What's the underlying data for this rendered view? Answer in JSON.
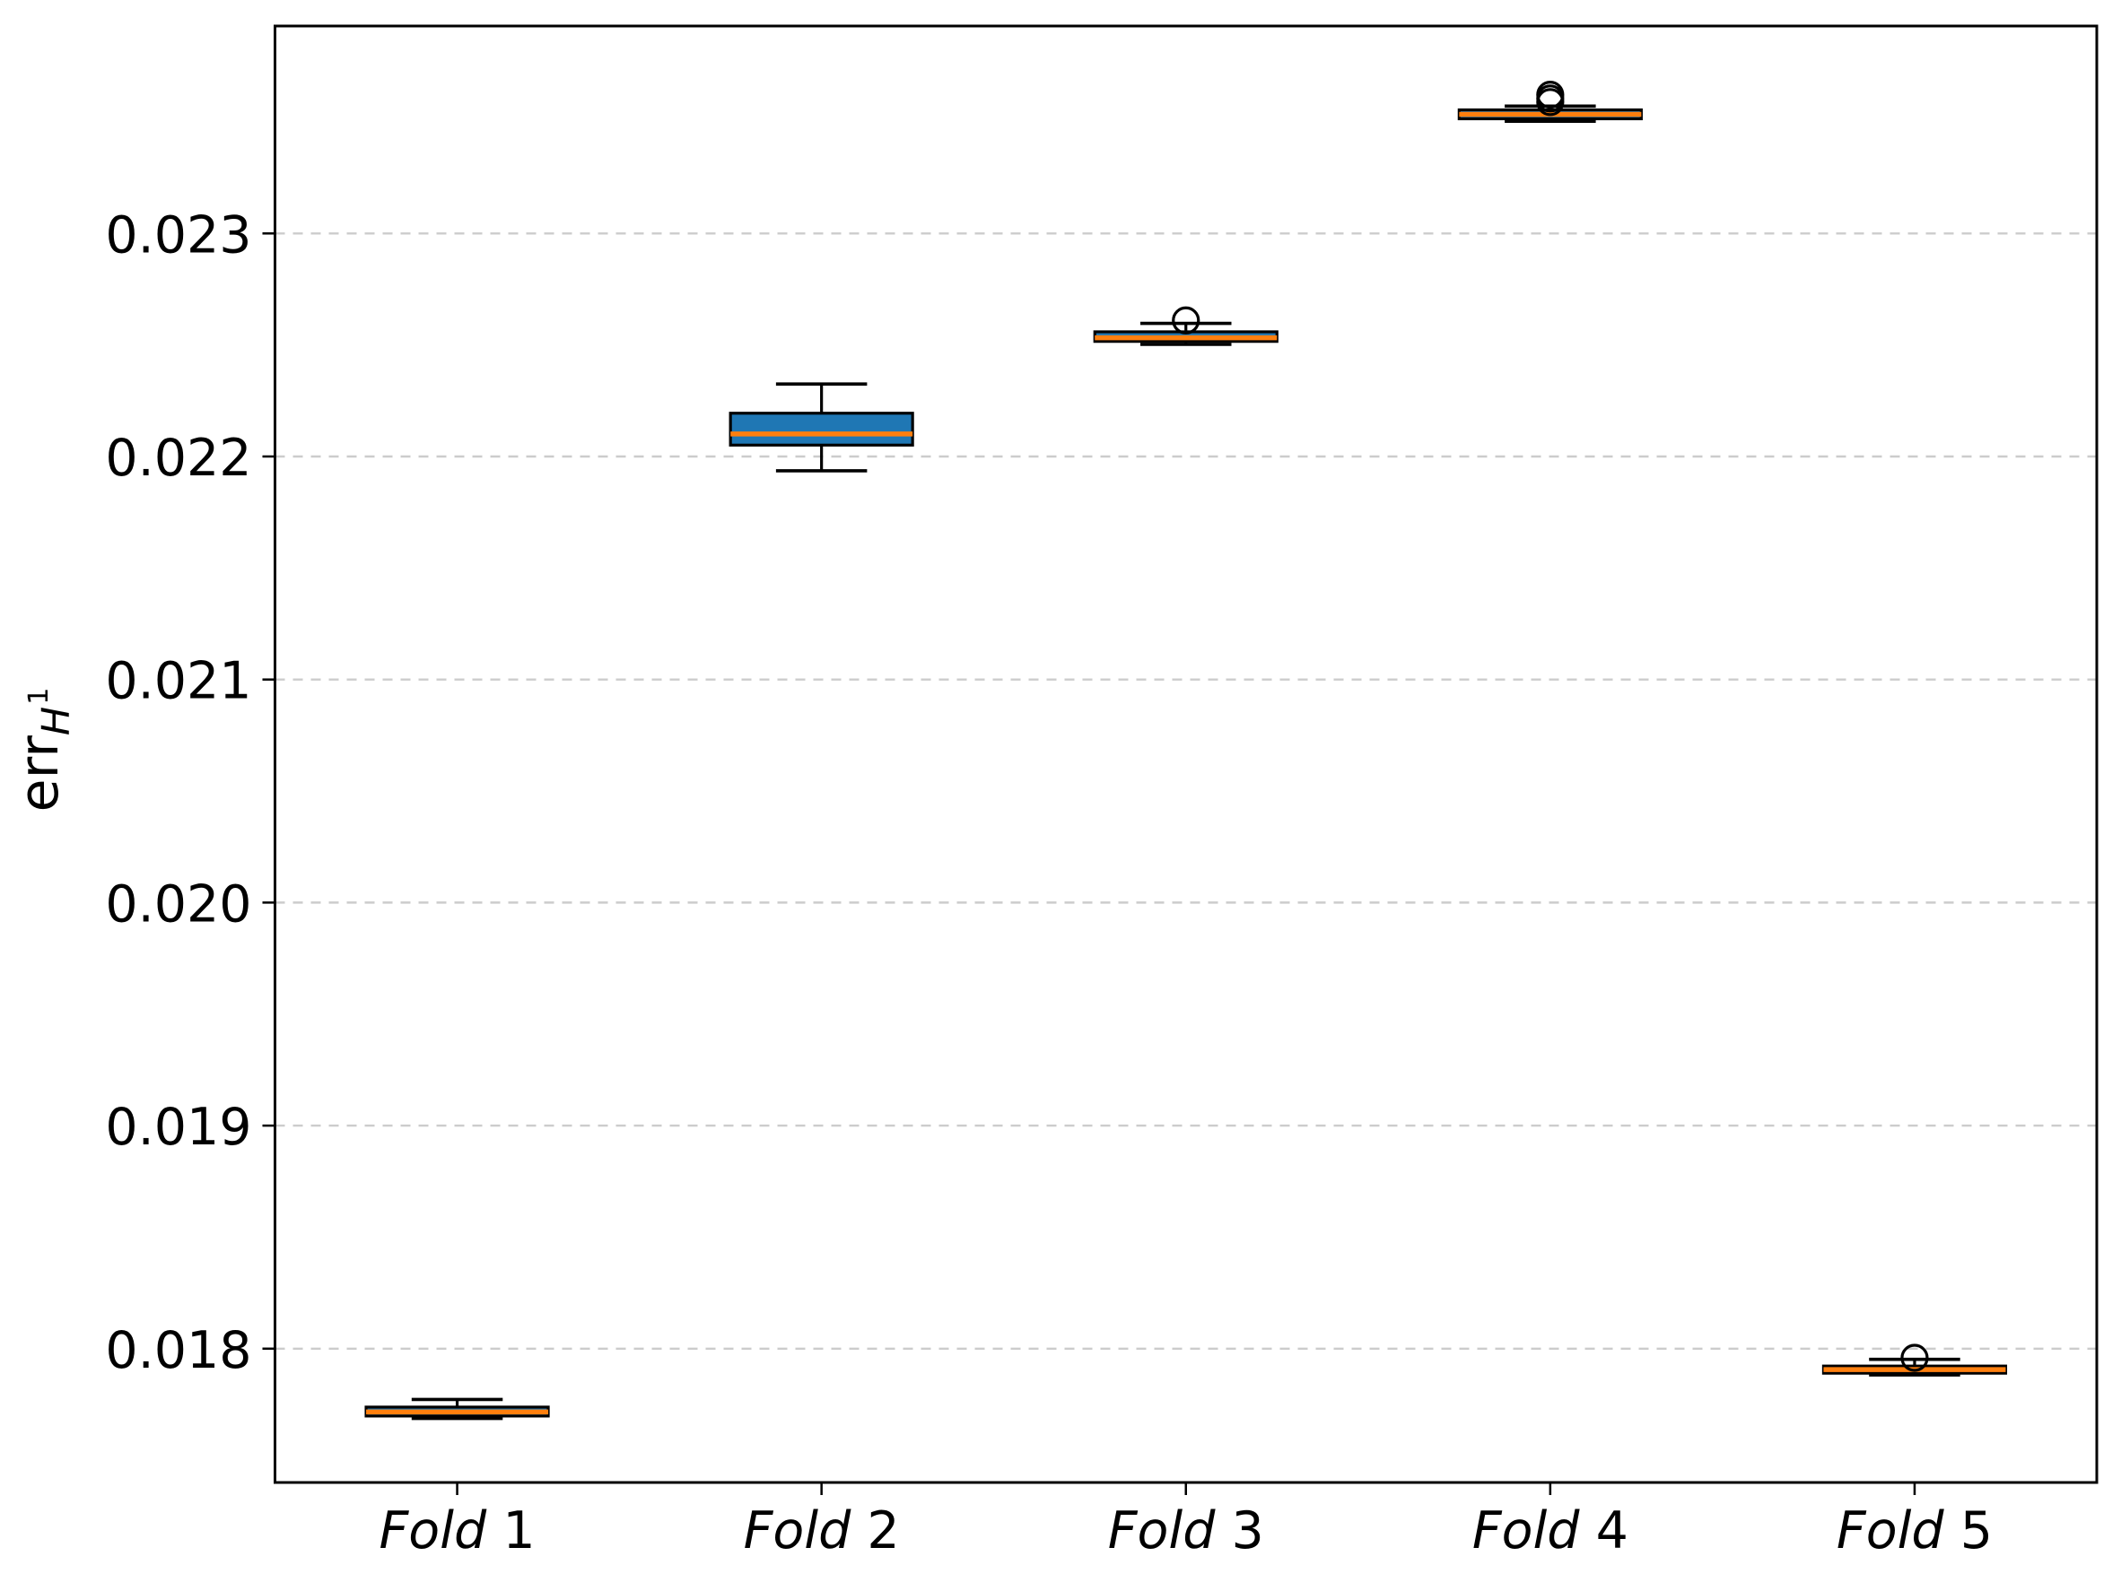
{
  "chart_data": {
    "type": "boxplot",
    "title": "",
    "xlabel": "",
    "ylabel": "err_{H^1}",
    "ylabel_parts": {
      "base": "err",
      "sub_italic": "H",
      "sub_superscript": "1"
    },
    "categories": [
      "Fold 1",
      "Fold 2",
      "Fold 3",
      "Fold 4",
      "Fold 5"
    ],
    "category_word_italic": true,
    "xlim": [
      0.5,
      5.5
    ],
    "ylim": [
      0.0174,
      0.02393
    ],
    "yticks": [
      0.018,
      0.019,
      0.02,
      0.021,
      0.022,
      0.023
    ],
    "ytick_labels": [
      "0.018",
      "0.019",
      "0.020",
      "0.021",
      "0.022",
      "0.023"
    ],
    "grid": {
      "axis": "y",
      "style": "dashed",
      "color": "#cccccc",
      "on": true
    },
    "legend": {
      "shown": false
    },
    "colors": {
      "box_fill": "#1f77b4",
      "median_line": "#ff7f0e",
      "box_edge": "#000000",
      "whisker": "#000000",
      "flier_edge": "#000000",
      "background": "#ffffff",
      "spine": "#000000"
    },
    "boxes": [
      {
        "label": "Fold 1",
        "position": 1,
        "whislo": 0.017687,
        "q1": 0.017698,
        "med": 0.017716,
        "q3": 0.017738,
        "whishi": 0.017772,
        "fliers": []
      },
      {
        "label": "Fold 2",
        "position": 2,
        "whislo": 0.021936,
        "q1": 0.022051,
        "med": 0.022101,
        "q3": 0.022194,
        "whishi": 0.022325,
        "fliers": []
      },
      {
        "label": "Fold 3",
        "position": 3,
        "whislo": 0.022503,
        "q1": 0.022516,
        "med": 0.022532,
        "q3": 0.022559,
        "whishi": 0.022597,
        "fliers": [
          0.02261
        ]
      },
      {
        "label": "Fold 4",
        "position": 4,
        "whislo": 0.023503,
        "q1": 0.023514,
        "med": 0.023534,
        "q3": 0.023554,
        "whishi": 0.023571,
        "fliers": [
          0.023589,
          0.023605,
          0.023622
        ]
      },
      {
        "label": "Fold 5",
        "position": 5,
        "whislo": 0.017882,
        "q1": 0.01789,
        "med": 0.017906,
        "q3": 0.017922,
        "whishi": 0.017952,
        "fliers": [
          0.017959
        ]
      }
    ]
  }
}
